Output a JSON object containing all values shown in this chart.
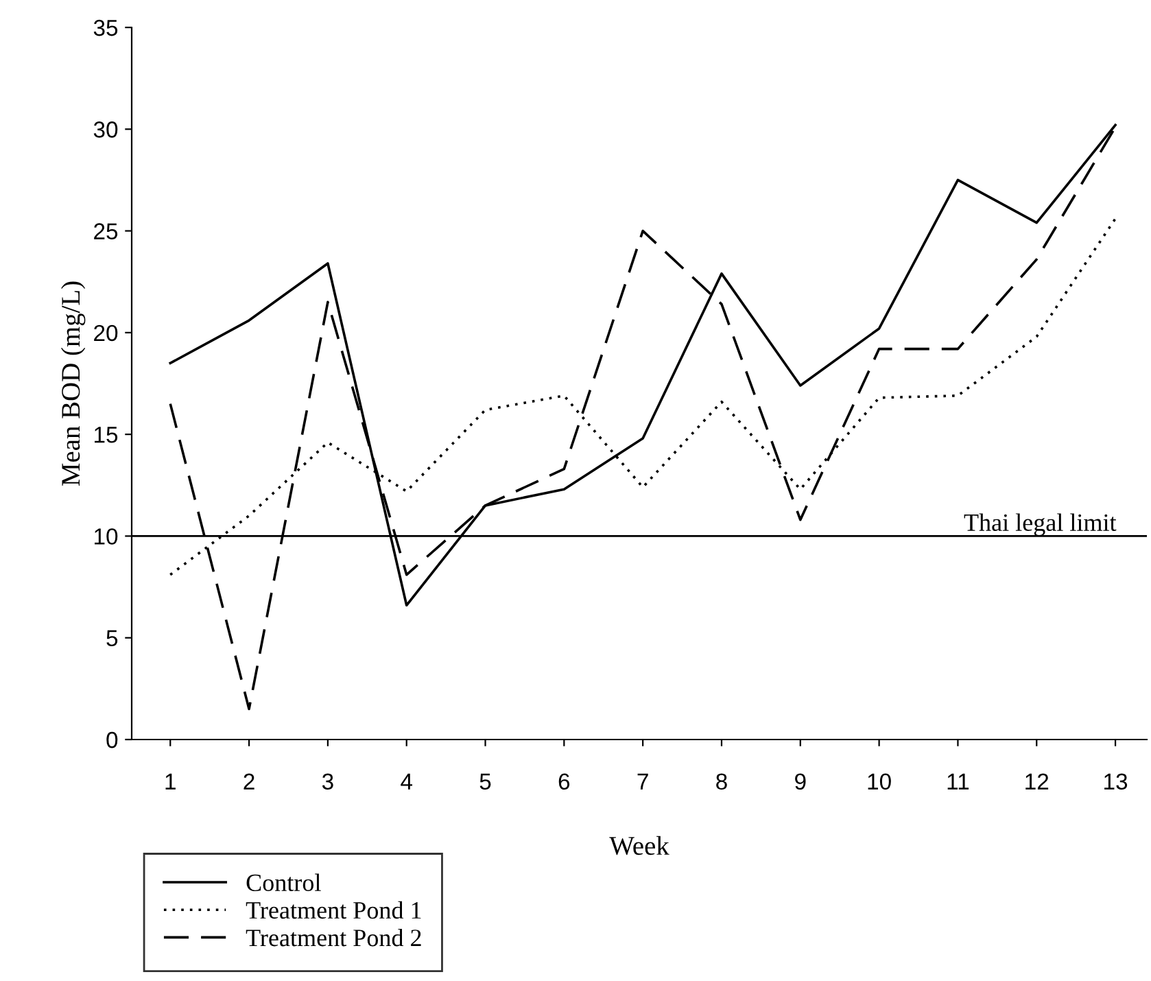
{
  "chart_data": {
    "type": "line",
    "xlabel": "Week",
    "ylabel": "Mean BOD (mg/L)",
    "x": [
      1,
      2,
      3,
      4,
      5,
      6,
      7,
      8,
      9,
      10,
      11,
      12,
      13
    ],
    "series": [
      {
        "name": "Control",
        "color": "#000000",
        "line_style": "solid",
        "values": [
          18.5,
          20.6,
          23.4,
          6.6,
          11.5,
          12.3,
          14.8,
          22.9,
          17.4,
          20.2,
          27.5,
          25.4,
          30.2
        ]
      },
      {
        "name": "Treatment Pond 1",
        "color": "#000000",
        "line_style": "dotted",
        "values": [
          8.1,
          11.0,
          14.6,
          12.2,
          16.2,
          16.9,
          12.4,
          16.6,
          12.3,
          16.8,
          16.9,
          19.8,
          25.6
        ]
      },
      {
        "name": "Treatment Pond 2",
        "color": "#000000",
        "line_style": "dashed",
        "values": [
          16.5,
          1.5,
          21.5,
          8.1,
          11.5,
          13.3,
          25.0,
          21.4,
          10.8,
          19.2,
          19.2,
          23.6,
          30.1
        ]
      }
    ],
    "xlim": [
      0.51,
      13.4
    ],
    "xticks": [
      1,
      2,
      3,
      4,
      5,
      6,
      7,
      8,
      9,
      10,
      11,
      12,
      13
    ],
    "ylim": [
      0,
      35
    ],
    "yticks": [
      0,
      5,
      10,
      15,
      20,
      25,
      30,
      35
    ],
    "ref_lines": [
      {
        "axis": "y",
        "value": 10,
        "label": "Thai legal limit",
        "color": "#000000"
      }
    ],
    "legend": "bottom left",
    "grid": false,
    "marker": "none"
  }
}
